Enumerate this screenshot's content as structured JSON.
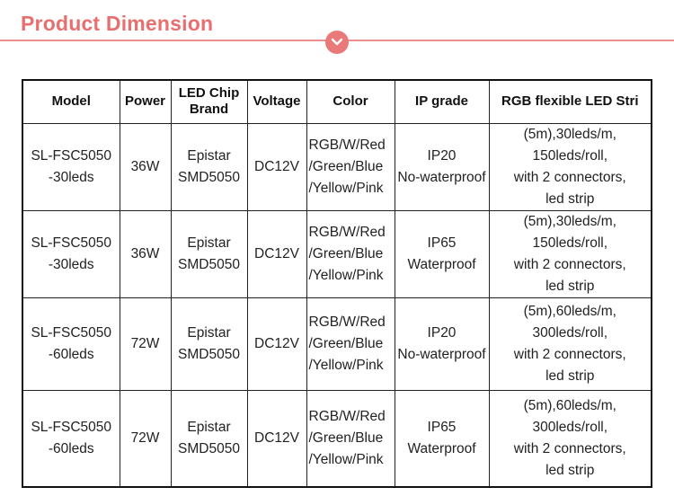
{
  "header": {
    "title": "Product Dimension",
    "badge_icon": "chevron-down-icon",
    "accent_color": "#e86f6f"
  },
  "table": {
    "columns": [
      "Model",
      "Power",
      "LED Chip Brand",
      "Voltage",
      "Color",
      "IP grade",
      "RGB flexible LED Stri"
    ],
    "header_lines": {
      "chip_1": "LED Chip",
      "chip_2": "Brand"
    },
    "rows": [
      {
        "model_1": "SL-FSC5050",
        "model_2": "-30leds",
        "power": "36W",
        "chip_1": "Epistar",
        "chip_2": "SMD5050",
        "voltage": "DC12V",
        "color_1": "RGB/W/Red",
        "color_2": "/Green/Blue",
        "color_3": "/Yellow/Pink",
        "ip_1": "IP20",
        "ip_2": "No-waterproof",
        "desc_1": "(5m),30leds/m,",
        "desc_2": "150leds/roll,",
        "desc_3": "with 2 connectors,",
        "desc_4": "led strip"
      },
      {
        "model_1": "SL-FSC5050",
        "model_2": "-30leds",
        "power": "36W",
        "chip_1": "Epistar",
        "chip_2": "SMD5050",
        "voltage": "DC12V",
        "color_1": "RGB/W/Red",
        "color_2": "/Green/Blue",
        "color_3": "/Yellow/Pink",
        "ip_1": "IP65",
        "ip_2": "Waterproof",
        "desc_1": "(5m),30leds/m,",
        "desc_2": "150leds/roll,",
        "desc_3": "with 2 connectors,",
        "desc_4": "led strip"
      },
      {
        "model_1": "SL-FSC5050",
        "model_2": "-60leds",
        "power": "72W",
        "chip_1": "Epistar",
        "chip_2": "SMD5050",
        "voltage": "DC12V",
        "color_1": "RGB/W/Red",
        "color_2": "/Green/Blue",
        "color_3": "/Yellow/Pink",
        "ip_1": "IP20",
        "ip_2": "No-waterproof",
        "desc_1": "(5m),60leds/m,",
        "desc_2": "300leds/roll,",
        "desc_3": "with 2 connectors,",
        "desc_4": "led strip"
      },
      {
        "model_1": "SL-FSC5050",
        "model_2": "-60leds",
        "power": "72W",
        "chip_1": "Epistar",
        "chip_2": "SMD5050",
        "voltage": "DC12V",
        "color_1": "RGB/W/Red",
        "color_2": "/Green/Blue",
        "color_3": "/Yellow/Pink",
        "ip_1": "IP65",
        "ip_2": "Waterproof",
        "desc_1": "(5m),60leds/m,",
        "desc_2": "300leds/roll,",
        "desc_3": "with 2 connectors,",
        "desc_4": "led strip"
      }
    ]
  }
}
